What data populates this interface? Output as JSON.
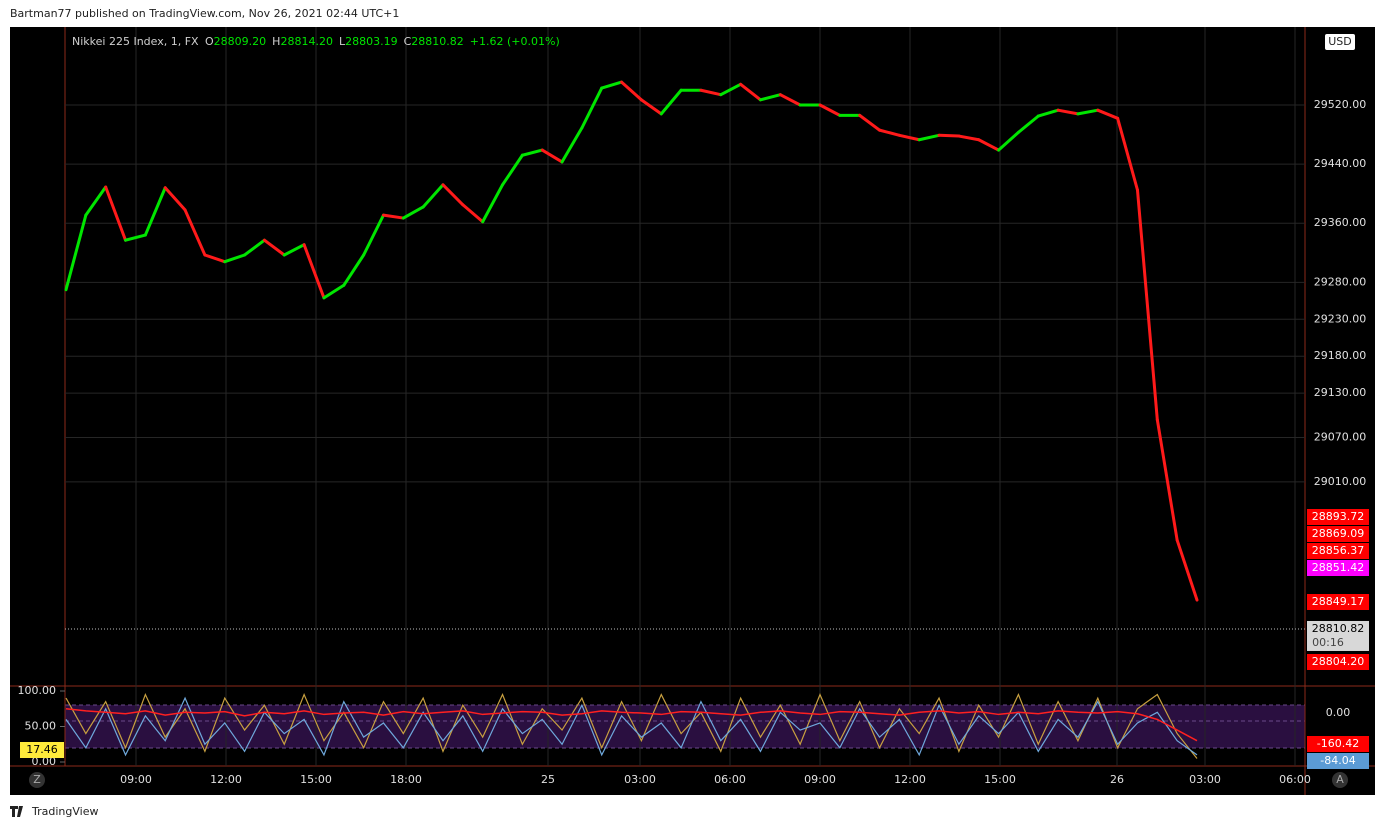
{
  "header": {
    "publish_note": "Bartman77 published on TradingView.com, Nov 26, 2021 02:44 UTC+1"
  },
  "chart_data": {
    "type": "line",
    "legend": {
      "symbol": "Nikkei 225 Index, 1, FX",
      "open_label": "O",
      "open": "28809.20",
      "high_label": "H",
      "high": "28814.20",
      "low_label": "L",
      "low": "28803.19",
      "close_label": "C",
      "close": "28810.82",
      "change": "+1.62 (+0.01%)"
    },
    "currency": "USD",
    "up_color": "#00e600",
    "down_color": "#ff1a1a",
    "values": [
      29270,
      29371,
      29409,
      29337,
      29344,
      29408,
      29378,
      29317,
      29308,
      29317,
      29337,
      29317,
      29331,
      29259,
      29276,
      29317,
      29371,
      29367,
      29382,
      29412,
      29385,
      29362,
      29412,
      29452,
      29459,
      29443,
      29489,
      29543,
      29551,
      29527,
      29508,
      29540,
      29540,
      29534,
      29548,
      29527,
      29534,
      29520,
      29520,
      29506,
      29506,
      29486,
      29479,
      29473,
      29479,
      29478,
      29473,
      29459,
      29483,
      29505,
      29513,
      29508,
      29513,
      29502,
      29405,
      29094,
      28931,
      28850
    ],
    "ylim": [
      28735,
      29608
    ],
    "yticks": [
      {
        "value": 29520,
        "label": "29520.00"
      },
      {
        "value": 29440,
        "label": "29440.00"
      },
      {
        "value": 29360,
        "label": "29360.00"
      },
      {
        "value": 29280,
        "label": "29280.00"
      },
      {
        "value": 29230,
        "label": "29230.00"
      },
      {
        "value": 29180,
        "label": "29180.00"
      },
      {
        "value": 29130,
        "label": "29130.00"
      },
      {
        "value": 29070,
        "label": "29070.00"
      },
      {
        "value": 29010,
        "label": "29010.00"
      }
    ],
    "grid": true,
    "x_tick_labels": [
      "09:00",
      "12:00",
      "15:00",
      "18:00",
      "25",
      "03:00",
      "06:00",
      "09:00",
      "12:00",
      "15:00",
      "26",
      "03:00",
      "06:00"
    ],
    "last_price": {
      "value": 28810.82,
      "label": "28810.82",
      "countdown": "00:16"
    },
    "price_badges": [
      {
        "label": "28893.72",
        "color": "#ff0000"
      },
      {
        "label": "28869.09",
        "color": "#ff0000"
      },
      {
        "label": "28856.37",
        "color": "#ff0000"
      },
      {
        "label": "28851.42",
        "color": "#ff00ff"
      },
      {
        "label": "28849.17",
        "color": "#ff0000"
      },
      {
        "label": "28804.20",
        "color": "#ff0000"
      }
    ],
    "oscillator": {
      "ylim": [
        0,
        100
      ],
      "yticks": [
        {
          "value": 100,
          "label": "100.00"
        },
        {
          "value": 50,
          "label": "50.00"
        },
        {
          "value": 0,
          "label": "0.00"
        }
      ],
      "current": "17.46",
      "right_labels": [
        {
          "label": "0.00",
          "color": "#000000"
        },
        {
          "label": "-160.42",
          "color": "#ff0000"
        },
        {
          "label": "-84.04",
          "color": "#5b9bd5"
        }
      ],
      "series": [
        {
          "color": "#c8a040",
          "values": [
            90,
            40,
            85,
            20,
            95,
            35,
            75,
            15,
            90,
            45,
            80,
            25,
            95,
            30,
            70,
            20,
            85,
            40,
            90,
            15,
            80,
            35,
            95,
            25,
            75,
            45,
            90,
            20,
            85,
            30,
            95,
            40,
            70,
            15,
            90,
            35,
            80,
            25,
            95,
            30,
            85,
            20,
            75,
            40,
            90,
            15,
            80,
            35,
            95,
            25,
            85,
            30,
            90,
            20,
            75,
            95,
            40,
            5
          ]
        },
        {
          "color": "#6fa8dc",
          "values": [
            60,
            20,
            75,
            10,
            65,
            30,
            90,
            25,
            55,
            15,
            70,
            40,
            60,
            10,
            85,
            35,
            55,
            20,
            70,
            30,
            65,
            15,
            75,
            40,
            60,
            25,
            80,
            10,
            65,
            35,
            55,
            20,
            85,
            30,
            60,
            15,
            70,
            45,
            55,
            20,
            75,
            35,
            60,
            10,
            80,
            25,
            65,
            40,
            70,
            15,
            60,
            35,
            85,
            25,
            55,
            70,
            30,
            10
          ]
        },
        {
          "color": "#ff2020",
          "values": [
            75,
            72,
            70,
            68,
            72,
            66,
            70,
            69,
            71,
            65,
            70,
            68,
            72,
            67,
            69,
            70,
            66,
            71,
            68,
            70,
            72,
            67,
            69,
            71,
            70,
            66,
            68,
            72,
            70,
            69,
            67,
            71,
            70,
            68,
            66,
            70,
            72,
            69,
            67,
            71,
            70,
            68,
            66,
            70,
            72,
            69,
            71,
            67,
            70,
            68,
            72,
            70,
            69,
            71,
            68,
            60,
            45,
            30
          ]
        }
      ]
    },
    "buttons": {
      "zoom": "Z",
      "auto": "A"
    }
  },
  "footer": {
    "brand": "TradingView"
  }
}
